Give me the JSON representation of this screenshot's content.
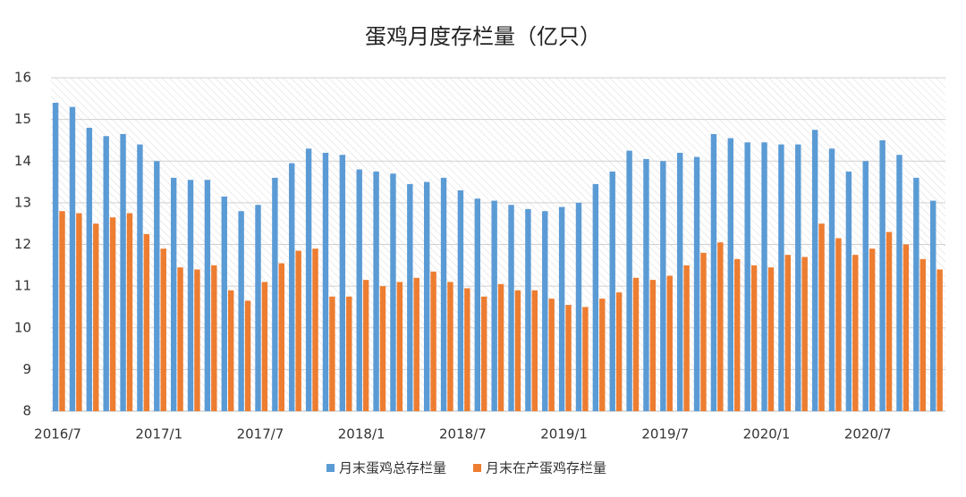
{
  "chart_data": {
    "type": "bar",
    "title": "蛋鸡月度存栏量（亿只）",
    "categories": [
      "2016/7",
      null,
      null,
      null,
      null,
      null,
      "2017/1",
      null,
      null,
      null,
      null,
      null,
      "2017/7",
      null,
      null,
      null,
      null,
      null,
      "2018/1",
      null,
      null,
      null,
      null,
      null,
      "2018/7",
      null,
      null,
      null,
      null,
      null,
      "2019/1",
      null,
      null,
      null,
      null,
      null,
      "2019/7",
      null,
      null,
      null,
      null,
      null,
      "2020/1",
      null,
      null,
      null,
      null,
      null,
      "2020/7",
      null,
      null,
      null,
      null
    ],
    "series": [
      {
        "name": "月末蛋鸡总存栏量",
        "color": "#5b9bd5",
        "values": [
          15.4,
          15.3,
          14.8,
          14.6,
          14.65,
          14.4,
          14.0,
          13.6,
          13.55,
          13.55,
          13.15,
          12.8,
          12.95,
          13.6,
          13.95,
          14.3,
          14.2,
          14.15,
          13.8,
          13.75,
          13.7,
          13.45,
          13.5,
          13.6,
          13.3,
          13.1,
          13.05,
          12.95,
          12.85,
          12.8,
          12.9,
          13.0,
          13.45,
          13.75,
          14.25,
          14.05,
          14.0,
          14.2,
          14.1,
          14.65,
          14.55,
          14.45,
          14.45,
          14.4,
          14.4,
          14.75,
          14.3,
          13.75,
          14.0,
          14.5,
          14.15,
          13.6,
          13.05
        ]
      },
      {
        "name": "月末在产蛋鸡存栏量",
        "color": "#ed7d31",
        "values": [
          12.8,
          12.75,
          12.5,
          12.65,
          12.75,
          12.25,
          11.9,
          11.45,
          11.4,
          11.5,
          10.9,
          10.65,
          11.1,
          11.55,
          11.85,
          11.9,
          10.75,
          10.75,
          11.15,
          11.0,
          11.1,
          11.2,
          11.35,
          11.1,
          10.95,
          10.75,
          11.05,
          10.9,
          10.9,
          10.7,
          10.55,
          10.5,
          10.7,
          10.85,
          11.2,
          11.15,
          11.25,
          11.5,
          11.8,
          12.05,
          11.65,
          11.5,
          11.45,
          11.75,
          11.7,
          12.5,
          12.15,
          11.75,
          11.9,
          12.3,
          12.0,
          11.65,
          11.4
        ]
      }
    ],
    "ylim": [
      8,
      16
    ],
    "yticks": [
      8,
      9,
      10,
      11,
      12,
      13,
      14,
      15,
      16
    ],
    "grid": true,
    "legend": "bottom"
  }
}
